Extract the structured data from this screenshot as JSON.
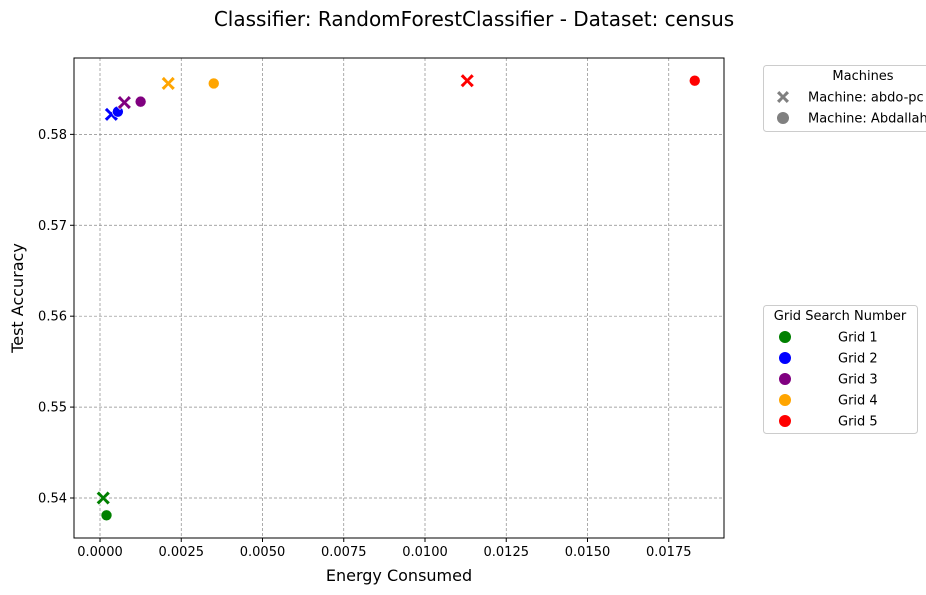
{
  "chart_data": {
    "type": "scatter",
    "title": "Classifier: RandomForestClassifier - Dataset: census",
    "xlabel": "Energy Consumed",
    "ylabel": "Test Accuracy",
    "xlim": [
      -0.0008,
      0.0192
    ],
    "ylim": [
      0.5356,
      0.5884
    ],
    "x_ticks": [
      0.0,
      0.0025,
      0.005,
      0.0075,
      0.01,
      0.0125,
      0.015,
      0.0175
    ],
    "x_tick_labels": [
      "0.0000",
      "0.0025",
      "0.0050",
      "0.0075",
      "0.0100",
      "0.0125",
      "0.0150",
      "0.0175"
    ],
    "y_ticks": [
      0.54,
      0.55,
      0.56,
      0.57,
      0.58
    ],
    "y_tick_labels": [
      "0.54",
      "0.55",
      "0.56",
      "0.57",
      "0.58"
    ],
    "grid": true,
    "legend_placement": "outside-right",
    "machine_legend": {
      "title": "Machines",
      "entries": [
        {
          "label": "Machine: abdo-pc",
          "marker": "x"
        },
        {
          "label": "Machine: Abdallah",
          "marker": "circle"
        }
      ]
    },
    "grid_legend": {
      "title": "Grid Search Number",
      "entries": [
        {
          "label": "Grid 1",
          "color": "#008000"
        },
        {
          "label": "Grid 2",
          "color": "#0000ff"
        },
        {
          "label": "Grid 3",
          "color": "#800080"
        },
        {
          "label": "Grid 4",
          "color": "#ffa500"
        },
        {
          "label": "Grid 5",
          "color": "#ff0000"
        }
      ]
    },
    "series": [
      {
        "grid": "Grid 1",
        "color": "#008000",
        "points": [
          {
            "x": 0.0001,
            "y": 0.54,
            "marker": "x"
          },
          {
            "x": 0.0002,
            "y": 0.5381,
            "marker": "circle"
          }
        ]
      },
      {
        "grid": "Grid 2",
        "color": "#0000ff",
        "points": [
          {
            "x": 0.00035,
            "y": 0.5822,
            "marker": "x"
          },
          {
            "x": 0.00055,
            "y": 0.5825,
            "marker": "circle"
          }
        ]
      },
      {
        "grid": "Grid 3",
        "color": "#800080",
        "points": [
          {
            "x": 0.00075,
            "y": 0.5835,
            "marker": "x"
          },
          {
            "x": 0.00125,
            "y": 0.5836,
            "marker": "circle"
          }
        ]
      },
      {
        "grid": "Grid 4",
        "color": "#ffa500",
        "points": [
          {
            "x": 0.0021,
            "y": 0.5856,
            "marker": "x"
          },
          {
            "x": 0.0035,
            "y": 0.5856,
            "marker": "circle"
          }
        ]
      },
      {
        "grid": "Grid 5",
        "color": "#ff0000",
        "points": [
          {
            "x": 0.0113,
            "y": 0.5859,
            "marker": "x"
          },
          {
            "x": 0.0183,
            "y": 0.5859,
            "marker": "circle"
          }
        ]
      }
    ]
  }
}
